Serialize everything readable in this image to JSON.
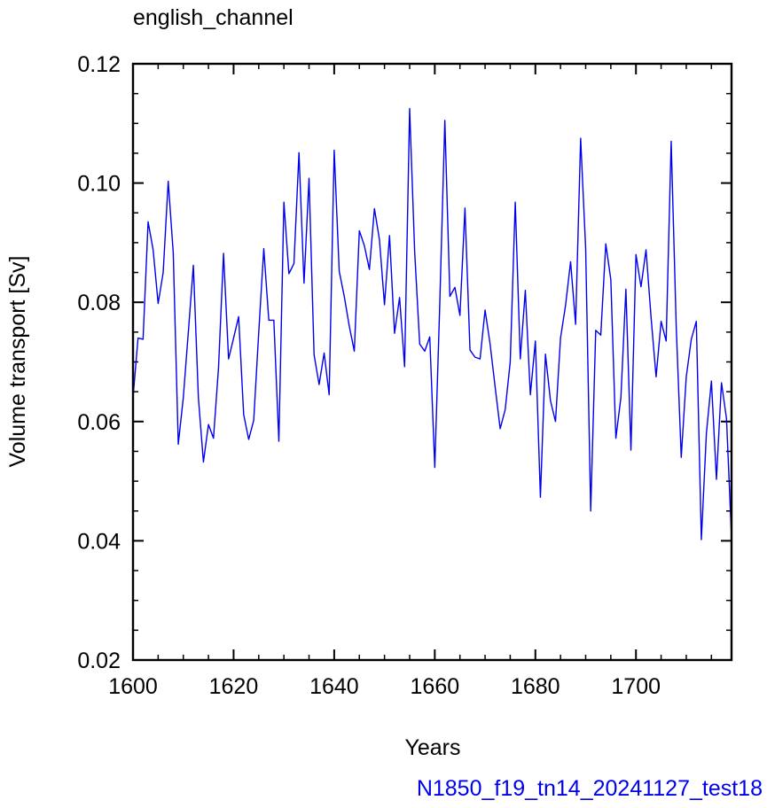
{
  "chart_data": {
    "type": "line",
    "title": "english_channel",
    "xlabel": "Years",
    "ylabel": "Volume transport [Sv]",
    "footer": "N1850_f19_tn14_20241127_test18",
    "xlim": [
      1600,
      1719
    ],
    "ylim": [
      0.02,
      0.12
    ],
    "x_ticks": [
      1600,
      1620,
      1640,
      1660,
      1680,
      1700
    ],
    "x_tick_labels": [
      "1600",
      "1620",
      "1640",
      "1660",
      "1680",
      "1700"
    ],
    "y_ticks": [
      0.02,
      0.04,
      0.06,
      0.08,
      0.1,
      0.12
    ],
    "y_tick_labels": [
      "0.02",
      "0.04",
      "0.06",
      "0.08",
      "0.10",
      "0.12"
    ],
    "grid": false,
    "series": [
      {
        "color": "#0000ee",
        "x_start": 1600,
        "x_step": 1,
        "values": [
          0.064,
          0.074,
          0.0738,
          0.0935,
          0.0888,
          0.0798,
          0.085,
          0.1003,
          0.0883,
          0.0562,
          0.064,
          0.075,
          0.0862,
          0.064,
          0.0532,
          0.0595,
          0.0572,
          0.069,
          0.0882,
          0.0705,
          0.074,
          0.0776,
          0.0612,
          0.057,
          0.0602,
          0.075,
          0.089,
          0.077,
          0.077,
          0.0567,
          0.0968,
          0.0848,
          0.0865,
          0.1051,
          0.0832,
          0.1008,
          0.0712,
          0.0662,
          0.0715,
          0.0645,
          0.1055,
          0.0852,
          0.081,
          0.076,
          0.0718,
          0.092,
          0.0895,
          0.0855,
          0.0957,
          0.0905,
          0.0796,
          0.0912,
          0.0748,
          0.0808,
          0.0692,
          0.1125,
          0.0885,
          0.073,
          0.0718,
          0.0742,
          0.0523,
          0.08,
          0.1105,
          0.081,
          0.0825,
          0.0778,
          0.0958,
          0.072,
          0.0708,
          0.0705,
          0.0787,
          0.073,
          0.0658,
          0.0588,
          0.062,
          0.07,
          0.0968,
          0.0705,
          0.082,
          0.0645,
          0.0735,
          0.0473,
          0.0713,
          0.0635,
          0.06,
          0.074,
          0.0795,
          0.0868,
          0.0763,
          0.1075,
          0.089,
          0.045,
          0.0753,
          0.0745,
          0.0898,
          0.0838,
          0.0572,
          0.064,
          0.0822,
          0.0552,
          0.088,
          0.0826,
          0.0888,
          0.0775,
          0.0675,
          0.0768,
          0.0735,
          0.107,
          0.076,
          0.054,
          0.0675,
          0.0738,
          0.0768,
          0.0402,
          0.058,
          0.0668,
          0.0503,
          0.0665,
          0.0605,
          0.0405
        ]
      }
    ]
  }
}
